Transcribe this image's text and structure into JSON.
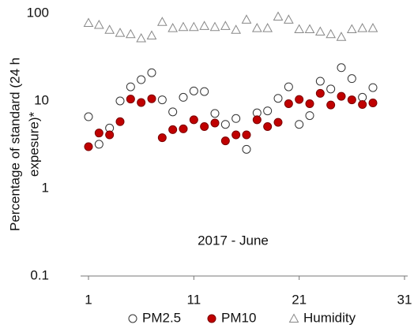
{
  "chart_data": {
    "type": "scatter",
    "ylabel": [
      "Percentage of standard  (24 h",
      "expesure)*"
    ],
    "annotation": "2017 - June",
    "x": [
      1,
      2,
      3,
      4,
      5,
      6,
      7,
      8,
      9,
      10,
      11,
      12,
      13,
      14,
      15,
      16,
      17,
      18,
      19,
      20,
      21,
      22,
      23,
      24,
      25,
      26,
      27,
      28
    ],
    "series": [
      {
        "name": "PM2.5",
        "color": "#ffffff",
        "stroke": "#333333",
        "marker": "circle",
        "values": [
          6.6,
          3.2,
          4.9,
          10,
          14.5,
          17.5,
          21,
          10.3,
          7.5,
          11,
          13,
          12.8,
          7.2,
          5.4,
          6.3,
          2.8,
          7.3,
          7.7,
          10.7,
          14.5,
          5.4,
          6.8,
          16.8,
          13.7,
          24,
          18,
          11,
          14.2
        ]
      },
      {
        "name": "PM10",
        "color": "#c00000",
        "stroke": "#7a0000",
        "marker": "circle",
        "values": [
          3.0,
          4.3,
          4.1,
          5.8,
          10.5,
          9.6,
          10.6,
          3.8,
          4.7,
          4.8,
          6.1,
          5.1,
          5.6,
          3.5,
          4.1,
          4.1,
          6.1,
          5.1,
          5.7,
          9.3,
          10.4,
          9.3,
          12.2,
          9.0,
          11.3,
          10.3,
          9.1,
          9.5
        ]
      },
      {
        "name": "Humidity",
        "color": "#ffffff",
        "stroke": "#888888",
        "marker": "triangle",
        "values": [
          78,
          74,
          65,
          60,
          58,
          52,
          56,
          80,
          68,
          70,
          70,
          72,
          70,
          72,
          65,
          85,
          68,
          68,
          92,
          85,
          66,
          66,
          62,
          58,
          54,
          66,
          68,
          68
        ]
      }
    ],
    "xlim": [
      1,
      31
    ],
    "xticks": [
      1,
      11,
      21,
      31
    ],
    "ylim": [
      0.1,
      100
    ],
    "yticks": [
      0.1,
      1,
      10,
      100
    ],
    "ylog": true,
    "legend": "bottom"
  }
}
